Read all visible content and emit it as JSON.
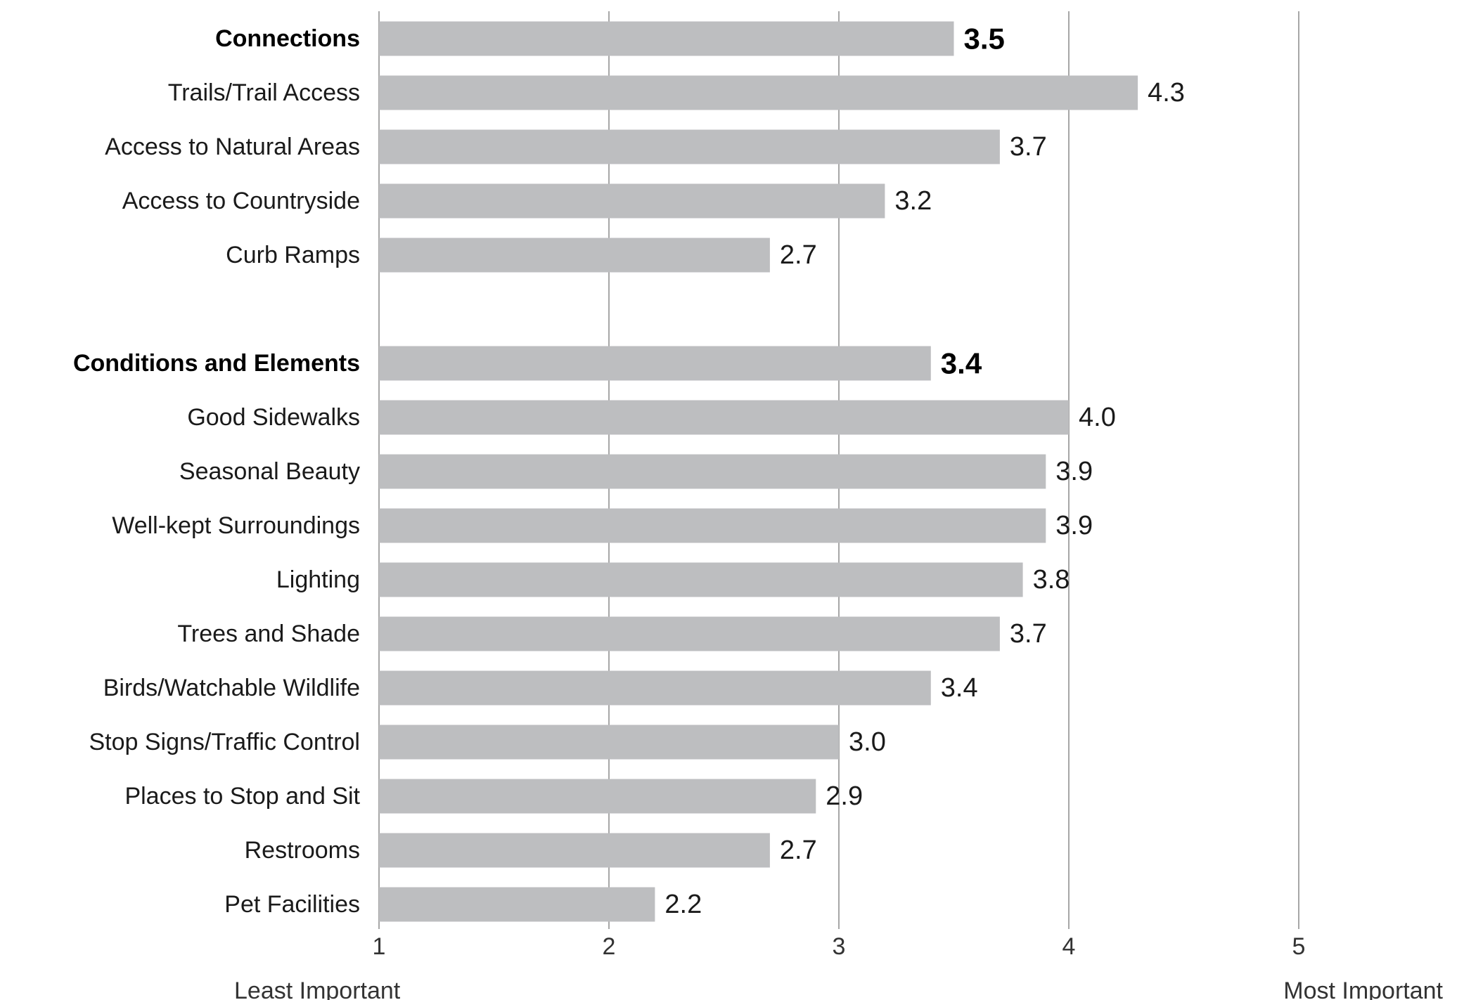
{
  "chart_data": {
    "type": "bar",
    "orientation": "horizontal",
    "title": "",
    "xlabel": "",
    "ylabel": "",
    "xlim": [
      1,
      5
    ],
    "xticks": [
      "1",
      "2",
      "3",
      "4",
      "5"
    ],
    "grid": "vertical",
    "axis_end_labels": {
      "left": "Least Important",
      "right": "Most Important"
    },
    "colors": {
      "bar": "#bdbec0",
      "grid": "#8a8a8a",
      "text": "#1a1a1a"
    },
    "groups": [
      {
        "header": {
          "label": "Connections",
          "value": 3.5,
          "display": "3.5"
        },
        "items": [
          {
            "label": "Trails/Trail Access",
            "value": 4.3,
            "display": "4.3"
          },
          {
            "label": "Access to Natural Areas",
            "value": 3.7,
            "display": "3.7"
          },
          {
            "label": "Access to Countryside",
            "value": 3.2,
            "display": "3.2"
          },
          {
            "label": "Curb Ramps",
            "value": 2.7,
            "display": "2.7"
          }
        ]
      },
      {
        "header": {
          "label": "Conditions and Elements",
          "value": 3.4,
          "display": "3.4"
        },
        "items": [
          {
            "label": "Good Sidewalks",
            "value": 4.0,
            "display": "4.0"
          },
          {
            "label": "Seasonal Beauty",
            "value": 3.9,
            "display": "3.9"
          },
          {
            "label": "Well-kept Surroundings",
            "value": 3.9,
            "display": "3.9"
          },
          {
            "label": "Lighting",
            "value": 3.8,
            "display": "3.8"
          },
          {
            "label": "Trees and Shade",
            "value": 3.7,
            "display": "3.7"
          },
          {
            "label": "Birds/Watchable Wildlife",
            "value": 3.4,
            "display": "3.4"
          },
          {
            "label": "Stop Signs/Traffic Control",
            "value": 3.0,
            "display": "3.0"
          },
          {
            "label": "Places to Stop and Sit",
            "value": 2.9,
            "display": "2.9"
          },
          {
            "label": "Restrooms",
            "value": 2.7,
            "display": "2.7"
          },
          {
            "label": "Pet Facilities",
            "value": 2.2,
            "display": "2.2"
          }
        ]
      }
    ]
  }
}
